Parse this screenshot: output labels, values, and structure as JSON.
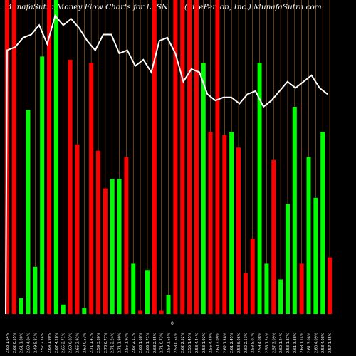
{
  "header": {
    "left": "MunafaSutra Money Flow  Charts for LPSN",
    "right": "(LivePerson, Inc.) MunafaSutra.com"
  },
  "axis": {
    "zero_label": "0"
  },
  "colors": {
    "background": "#000000",
    "up_bar": "#00ff00",
    "down_bar": "#ff0000",
    "separator": "#b06a1e",
    "line": "#ffffff",
    "text": "#ffffff"
  },
  "chart_data": {
    "type": "bar",
    "title": "MunafaSutra Money Flow  Charts for LPSN",
    "subtitle": "(LivePerson, Inc.) MunafaSutra.com",
    "categories": [
      "2.63 1.64%",
      "2.62 0.55%",
      "2.61 1.80%",
      "2.60 4.84%",
      "2.49 5.81%",
      "2.57 2.74%",
      "2.64 1.90%",
      "2.67 4.28%",
      "2.65 2.71%",
      "2.69 0.83%",
      "2.66 2.92%",
      "2.60 0.53%",
      "2.71 1.41%",
      "2.59 3.80%",
      "2.70 6.77%",
      "2.71 2.24%",
      "2.71 1.90%",
      "2.55 1.93%",
      "2.67 2.11%",
      "2.63 1.68%",
      "2.66 1.71%",
      "2.68 2.85%",
      "2.71 0.73%",
      "2.59 1.65%",
      "2.58 0.54%",
      "2.62 2.52%",
      "2.55 1.45%",
      "2.58 4.44%",
      "2.53 1.92%",
      "2.56 4.40%",
      "2.60 3.09%",
      "2.62 1.38%",
      "2.61 2.45%",
      "2.58 6.06%",
      "2.62 2.53%",
      "2.58 5.07%",
      "2.59 4.08%",
      "2.55 1.24%",
      "2.57 3.09%",
      "2.60 1.24%",
      "2.58 1.87%",
      "2.61 3.38%",
      "2.63 1.14%",
      "2.61 3.08%",
      "2.60 4.09%",
      "2.58 4.08%",
      "2.57 1.85%"
    ],
    "series": [
      {
        "values": [
          100,
          100,
          5,
          65,
          15,
          82,
          100,
          100,
          3,
          81,
          54,
          2,
          80,
          52,
          40,
          43,
          43,
          50,
          16,
          1,
          14,
          100,
          1,
          6,
          100,
          100,
          100,
          100,
          80,
          58,
          100,
          57,
          58,
          53,
          13,
          24,
          80,
          16,
          49,
          11,
          35,
          66,
          16,
          50,
          37,
          58,
          18
        ]
      }
    ],
    "bar_colors": [
      "red",
      "red",
      "green",
      "green",
      "green",
      "green",
      "red",
      "green",
      "green",
      "red",
      "red",
      "green",
      "red",
      "red",
      "red",
      "green",
      "green",
      "red",
      "green",
      "red",
      "green",
      "red",
      "red",
      "green",
      "red",
      "red",
      "red",
      "red",
      "green",
      "red",
      "red",
      "red",
      "green",
      "red",
      "red",
      "red",
      "green",
      "green",
      "red",
      "green",
      "green",
      "green",
      "red",
      "green",
      "green",
      "green",
      "red"
    ],
    "price_line": [
      84,
      85,
      88,
      89,
      92,
      86,
      95,
      92,
      94,
      91,
      87,
      84,
      89,
      89,
      83,
      84,
      79,
      81,
      77,
      87,
      88,
      83,
      74,
      78,
      77,
      70,
      68,
      69,
      69,
      67,
      70,
      71,
      66,
      68,
      71,
      74,
      72,
      74,
      76,
      72,
      70
    ],
    "price_ylim": [
      0,
      100
    ],
    "bars_ylim": [
      0,
      100
    ],
    "grid": false
  }
}
